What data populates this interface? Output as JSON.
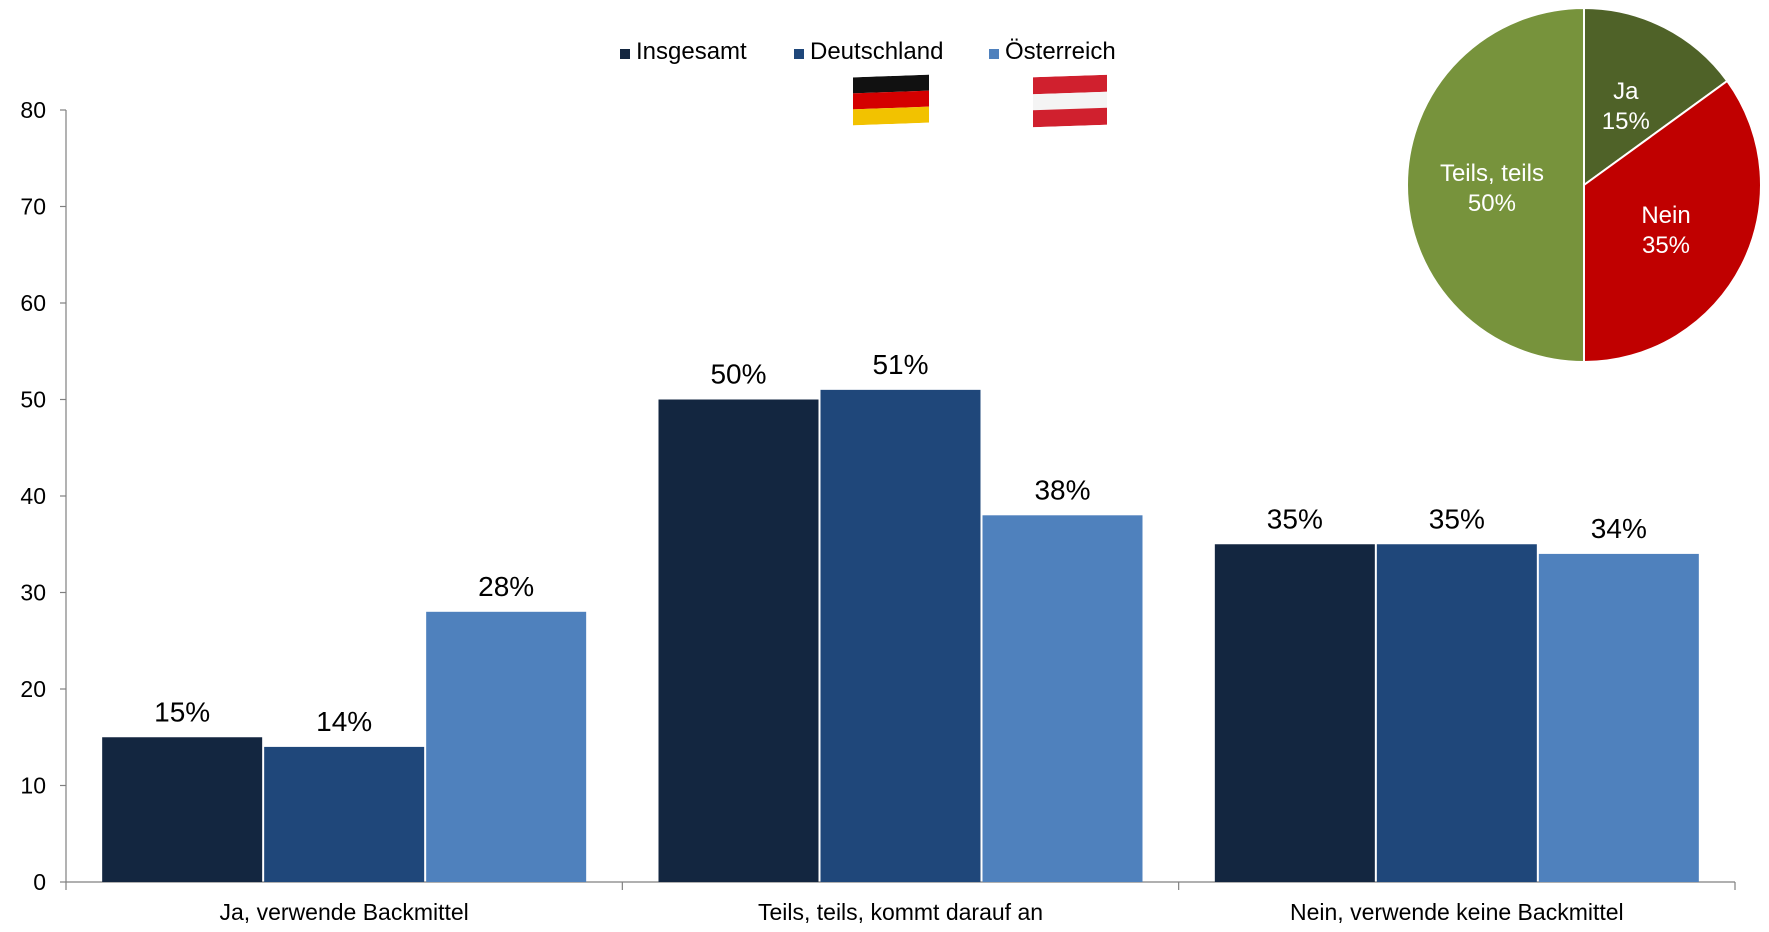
{
  "chart_data": [
    {
      "type": "bar",
      "categories": [
        "Ja, verwende Backmittel",
        "Teils, teils, kommt darauf an",
        "Nein, verwende keine Backmittel"
      ],
      "series": [
        {
          "name": "Insgesamt",
          "values": [
            15,
            50,
            35
          ],
          "labels": [
            "15%",
            "50%",
            "35%"
          ],
          "color": "#132640"
        },
        {
          "name": "Deutschland",
          "values": [
            14,
            51,
            35
          ],
          "labels": [
            "14%",
            "51%",
            "35%"
          ],
          "color": "#1f477a"
        },
        {
          "name": "Österreich",
          "values": [
            28,
            38,
            34
          ],
          "labels": [
            "28%",
            "38%",
            "34%"
          ],
          "color": "#4f81bd"
        }
      ],
      "yticks": [
        "0",
        "10",
        "20",
        "30",
        "40",
        "50",
        "60",
        "70",
        "80"
      ],
      "ylim": [
        0,
        80
      ],
      "grid": false,
      "legend_position": "top-center",
      "legend_flags": [
        "germany-flag",
        "austria-flag"
      ]
    },
    {
      "type": "pie",
      "slices": [
        {
          "label": "Ja",
          "value": 15,
          "value_label": "15%",
          "color": "#4f6228"
        },
        {
          "label": "Nein",
          "value": 35,
          "value_label": "35%",
          "color": "#c00000"
        },
        {
          "label": "Teils, teils",
          "value": 50,
          "value_label": "50%",
          "color": "#77933c"
        }
      ],
      "start": "top",
      "direction": "clockwise"
    }
  ],
  "legend": {
    "items": [
      "Insgesamt",
      "Deutschland",
      "Österreich"
    ]
  }
}
